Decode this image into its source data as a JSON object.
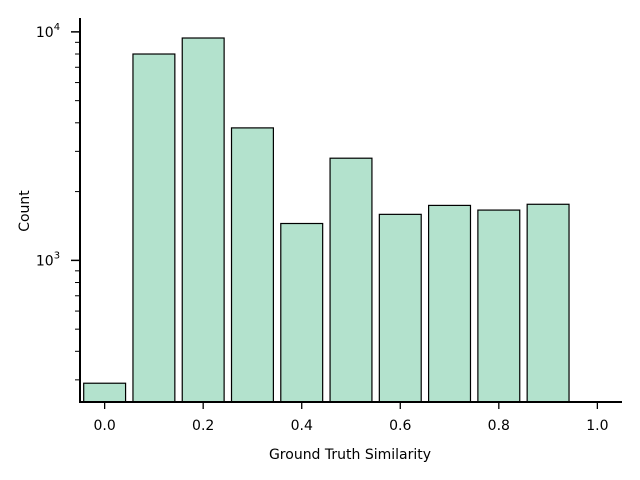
{
  "chart_data": {
    "type": "bar",
    "xlabel": "Ground Truth Similarity",
    "ylabel": "Count",
    "x_ticks": [
      "0.0",
      "0.2",
      "0.4",
      "0.6",
      "0.8",
      "1.0"
    ],
    "y_tick_labels": [
      {
        "value": 1000,
        "base": "10",
        "exp": "3"
      },
      {
        "value": 10000,
        "base": "10",
        "exp": "4"
      }
    ],
    "y_scale": "log",
    "xlim": [
      -0.05,
      1.05
    ],
    "ylim": [
      240,
      11500
    ],
    "bar_width": 0.085,
    "bar_color": "#b3e2cd",
    "edge_color": "#000000",
    "grid": false,
    "bins": [
      {
        "x": 0.0,
        "value": 290
      },
      {
        "x": 0.1,
        "value": 8000
      },
      {
        "x": 0.2,
        "value": 9400
      },
      {
        "x": 0.3,
        "value": 3800
      },
      {
        "x": 0.4,
        "value": 1450
      },
      {
        "x": 0.5,
        "value": 2800
      },
      {
        "x": 0.6,
        "value": 1590
      },
      {
        "x": 0.7,
        "value": 1740
      },
      {
        "x": 0.8,
        "value": 1660
      },
      {
        "x": 0.9,
        "value": 1760
      }
    ]
  }
}
